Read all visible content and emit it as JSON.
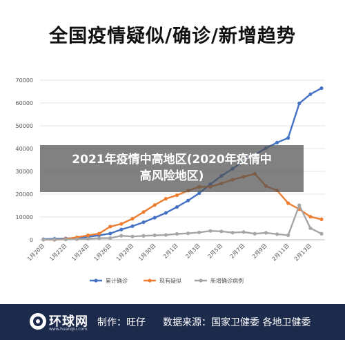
{
  "title": "全国疫情疑似/确诊/新增趋势",
  "overlay": {
    "line1": "2021年疫情中高地区(2020年疫情中",
    "line2": "高风险地区)"
  },
  "footer": {
    "logo_text": "环球网",
    "logo_url": "www.huanqiu.com",
    "producer": "制作：旺仔",
    "source": "数据来源：国家卫健委 各地卫健委"
  },
  "chart_data": {
    "type": "line",
    "title": "全国疫情疑似/确诊/新增趋势",
    "x_tick_labels": [
      "1月20日",
      "1月22日",
      "1月24日",
      "1月26日",
      "1月28日",
      "1月30日",
      "2月1日",
      "2月3日",
      "2月5日",
      "2月7日",
      "2月9日",
      "2月11日",
      "2月13日"
    ],
    "x": [
      "1月20日",
      "1月21日",
      "1月22日",
      "1月23日",
      "1月24日",
      "1月25日",
      "1月26日",
      "1月27日",
      "1月28日",
      "1月29日",
      "1月30日",
      "1月31日",
      "2月1日",
      "2月2日",
      "2月3日",
      "2月4日",
      "2月5日",
      "2月6日",
      "2月7日",
      "2月8日",
      "2月9日",
      "2月10日",
      "2月11日",
      "2月12日",
      "2月13日",
      "2月14日"
    ],
    "ylim": [
      0,
      70000
    ],
    "y_ticks": [
      0,
      10000,
      20000,
      30000,
      40000,
      50000,
      60000,
      70000
    ],
    "grid": true,
    "legend_position": "bottom",
    "series": [
      {
        "name": "累计确诊",
        "color": "#4472c4",
        "values": [
          291,
          440,
          571,
          830,
          1287,
          1975,
          2744,
          4515,
          5974,
          7711,
          9692,
          11791,
          14380,
          17205,
          20438,
          24324,
          28018,
          31161,
          34546,
          37198,
          40171,
          42638,
          44653,
          59804,
          63851,
          66492
        ]
      },
      {
        "name": "现有疑似",
        "color": "#ed7d31",
        "values": [
          54,
          37,
          393,
          1072,
          1965,
          2684,
          5794,
          6973,
          9239,
          12167,
          15238,
          17988,
          19544,
          21558,
          23214,
          23260,
          24702,
          26359,
          27657,
          28942,
          23589,
          21675,
          16067,
          13435,
          10109,
          8969
        ]
      },
      {
        "name": "新增确诊病例",
        "color": "#a5a5a5",
        "values": [
          77,
          149,
          131,
          259,
          444,
          688,
          769,
          1771,
          1459,
          1737,
          1981,
          2099,
          2590,
          2829,
          3235,
          3887,
          3694,
          3143,
          3399,
          2656,
          3062,
          2478,
          2015,
          15152,
          5090,
          2641
        ]
      }
    ]
  }
}
